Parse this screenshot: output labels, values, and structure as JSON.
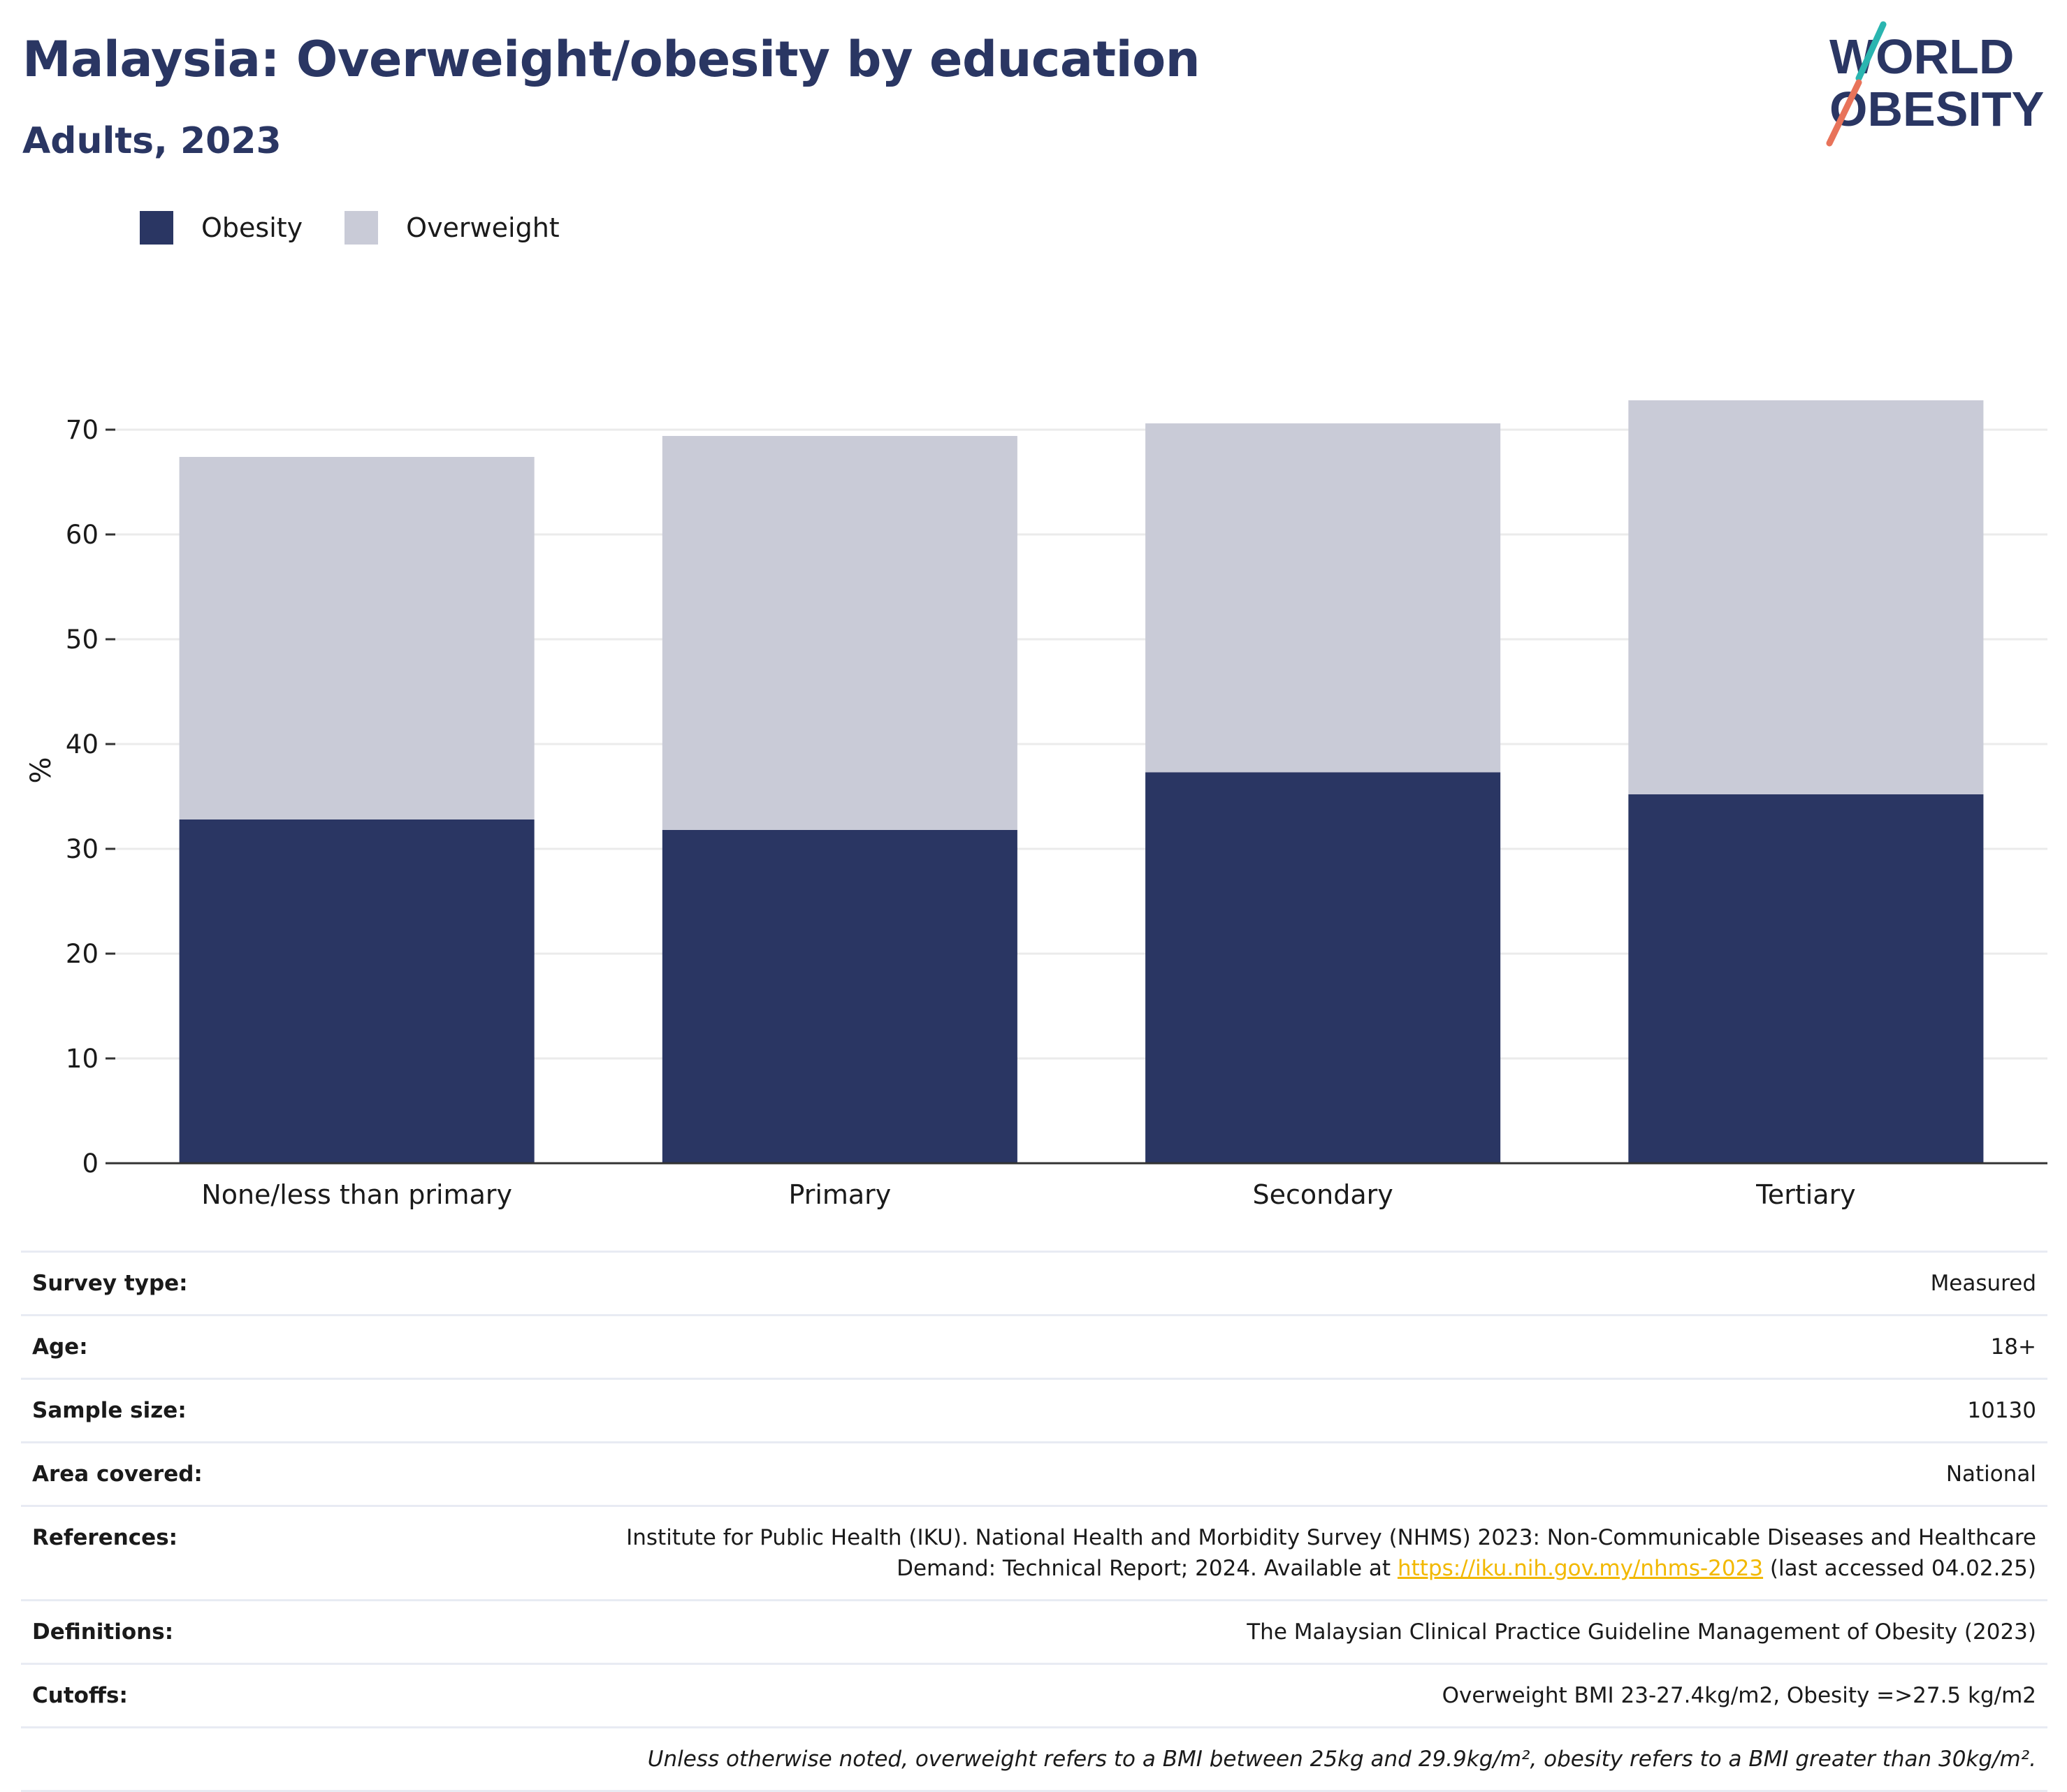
{
  "header": {
    "title": "Malaysia: Overweight/obesity by education",
    "subtitle": "Adults, 2023"
  },
  "logo": {
    "line1": "WORLD",
    "line2": "OBESITY",
    "colors": {
      "text": "#2a3663",
      "slash_top": "#2ab5b0",
      "slash_bottom": "#e8735a"
    }
  },
  "legend": [
    {
      "label": "Obesity",
      "color": "#2a3663"
    },
    {
      "label": "Overweight",
      "color": "#c9cbd7"
    }
  ],
  "chart_data": {
    "type": "bar",
    "stacked": true,
    "categories": [
      "None/less than primary",
      "Primary",
      "Secondary",
      "Tertiary"
    ],
    "series": [
      {
        "name": "Obesity",
        "color": "#2a3663",
        "values": [
          32.8,
          31.8,
          37.3,
          35.2
        ]
      },
      {
        "name": "Overweight",
        "color": "#c9cbd7",
        "values": [
          34.6,
          37.6,
          33.3,
          37.6
        ]
      }
    ],
    "ylabel": "%",
    "xlabel": "",
    "ylim": [
      0,
      75
    ],
    "yticks": [
      0,
      10,
      20,
      30,
      40,
      50,
      60,
      70
    ],
    "grid": true,
    "legend_position": "top-left"
  },
  "info": {
    "rows": [
      {
        "key": "Survey type:",
        "value": "Measured"
      },
      {
        "key": "Age:",
        "value": "18+"
      },
      {
        "key": "Sample size:",
        "value": "10130"
      },
      {
        "key": "Area covered:",
        "value": "National"
      },
      {
        "key": "References:",
        "value_line1": "Institute for Public Health (IKU). National Health and Morbidity Survey (NHMS) 2023: Non-Communicable Diseases and Healthcare",
        "value_line2_pre": "Demand: Technical Report; 2024. Available at ",
        "link": "https://iku.nih.gov.my/nhms-2023",
        "value_line2_post": " (last accessed 04.02.25)"
      },
      {
        "key": "Definitions:",
        "value": "The Malaysian Clinical Practice Guideline Management of Obesity (2023)"
      },
      {
        "key": "Cutoffs:",
        "value": "Overweight BMI 23-27.4kg/m2, Obesity =>27.5 kg/m2"
      }
    ],
    "note": "Unless otherwise noted, overweight refers to a BMI between 25kg and 29.9kg/m², obesity refers to a BMI greater than 30kg/m²."
  }
}
